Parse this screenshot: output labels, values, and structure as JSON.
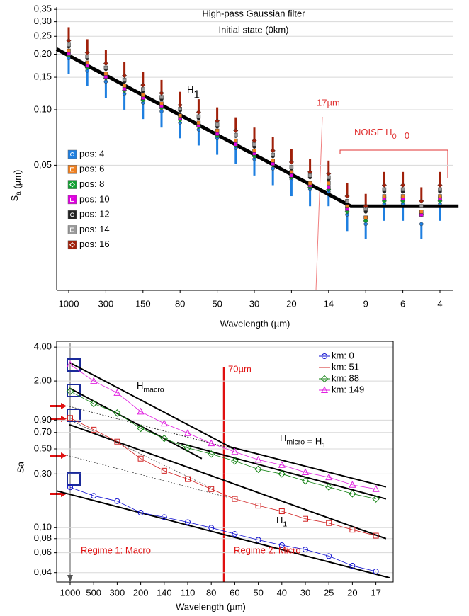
{
  "chart_data": [
    {
      "type": "scatter",
      "title": "High-pass Gaussian filter",
      "subtitle": "Initial state (0km)",
      "xlabel": "Wavelength (µm)",
      "ylabel": {
        "main": "S",
        "sub": "a",
        "rest": " (µm)"
      },
      "log_y": true,
      "grid": true,
      "ylim": [
        0.0105,
        0.36
      ],
      "yticks": [
        {
          "value": 0.35,
          "label": "0,35"
        },
        {
          "value": 0.3,
          "label": "0,30"
        },
        {
          "value": 0.25,
          "label": "0,25"
        },
        {
          "value": 0.2,
          "label": "0,20"
        },
        {
          "value": 0.15,
          "label": "0,15"
        },
        {
          "value": 0.1,
          "label": "0,10"
        },
        {
          "value": 0.05,
          "label": "0,05"
        }
      ],
      "categories": [
        "1000",
        null,
        "300",
        null,
        "150",
        null,
        "80",
        null,
        "50",
        null,
        "30",
        null,
        "20",
        null,
        "14",
        null,
        "9",
        null,
        "6",
        null,
        "4"
      ],
      "legend": "left",
      "series": [
        {
          "name": "pos: 4",
          "color": "#1e7fe0",
          "marker": "circle",
          "values": [
            0.19,
            0.163,
            0.142,
            0.122,
            0.109,
            0.098,
            0.085,
            0.078,
            0.07,
            0.062,
            0.054,
            0.048,
            0.042,
            0.037,
            0.036,
            0.027,
            0.024,
            0.031,
            0.031,
            0.024,
            0.031
          ],
          "errors": [
            0.034,
            0.029,
            0.026,
            0.022,
            0.02,
            0.018,
            0.015,
            0.014,
            0.013,
            0.011,
            0.01,
            0.009,
            0.008,
            0.007,
            0.006,
            0.005,
            0.004,
            0.006,
            0.006,
            0.004,
            0.006
          ]
        },
        {
          "name": "pos: 6",
          "color": "#f08020",
          "marker": "square",
          "values": [
            0.209,
            0.18,
            0.157,
            0.135,
            0.12,
            0.108,
            0.093,
            0.085,
            0.077,
            0.068,
            0.06,
            0.053,
            0.046,
            0.04,
            0.04,
            0.03,
            0.026,
            0.034,
            0.034,
            0.028,
            0.034
          ]
        },
        {
          "name": "pos: 8",
          "color": "#10a030",
          "marker": "diamond",
          "values": [
            0.197,
            0.169,
            0.148,
            0.127,
            0.113,
            0.102,
            0.088,
            0.081,
            0.072,
            0.064,
            0.056,
            0.05,
            0.043,
            0.038,
            0.037,
            0.028,
            0.025,
            0.032,
            0.032,
            0.027,
            0.032
          ]
        },
        {
          "name": "pos: 10",
          "color": "#e000e0",
          "marker": "square",
          "values": [
            0.201,
            0.173,
            0.151,
            0.13,
            0.116,
            0.105,
            0.09,
            0.082,
            0.074,
            0.065,
            0.058,
            0.051,
            0.044,
            0.039,
            0.038,
            0.029,
            0.026,
            0.033,
            0.033,
            0.027,
            0.033
          ]
        },
        {
          "name": "pos: 12",
          "color": "#222222",
          "marker": "circle",
          "values": [
            0.22,
            0.19,
            0.166,
            0.142,
            0.126,
            0.114,
            0.099,
            0.09,
            0.081,
            0.072,
            0.063,
            0.056,
            0.048,
            0.043,
            0.042,
            0.032,
            0.028,
            0.036,
            0.036,
            0.03,
            0.036
          ]
        },
        {
          "name": "pos: 14",
          "color": "#9a9a9a",
          "marker": "square",
          "values": [
            0.225,
            0.194,
            0.169,
            0.145,
            0.129,
            0.117,
            0.101,
            0.092,
            0.083,
            0.073,
            0.065,
            0.057,
            0.049,
            0.044,
            0.043,
            0.032,
            0.029,
            0.037,
            0.037,
            0.03,
            0.037
          ]
        },
        {
          "name": "pos: 16",
          "color": "#a0200a",
          "marker": "diamond",
          "values": [
            0.237,
            0.204,
            0.178,
            0.153,
            0.136,
            0.123,
            0.106,
            0.097,
            0.087,
            0.077,
            0.068,
            0.06,
            0.052,
            0.046,
            0.045,
            0.034,
            0.03,
            0.039,
            0.039,
            0.032,
            0.039
          ],
          "errors": [
            0.043,
            0.037,
            0.032,
            0.028,
            0.024,
            0.022,
            0.019,
            0.017,
            0.016,
            0.014,
            0.012,
            0.011,
            0.009,
            0.008,
            0.008,
            0.006,
            0.005,
            0.007,
            0.007,
            0.006,
            0.007
          ]
        }
      ],
      "fit_lines": [
        {
          "x": [
            -0.65,
            15.2,
            21
          ],
          "y": [
            0.213,
            0.03,
            0.03
          ]
        }
      ],
      "annotations": {
        "h1": {
          "main": "H",
          "sub": "1"
        },
        "cutoff": "17µm",
        "noise": {
          "main": "NOISE H",
          "sub": "0",
          "rest": " =0"
        }
      }
    },
    {
      "type": "line",
      "xlabel": "Wavelength (µm)",
      "ylabel": "Sa",
      "log_y": true,
      "grid": true,
      "ylim": [
        0.033,
        4.5
      ],
      "yticks": [
        {
          "value": 4,
          "label": "4,00"
        },
        {
          "value": 2,
          "label": "2,00"
        },
        {
          "value": 0.9,
          "label": "0,90"
        },
        {
          "value": 0.7,
          "label": "0,70"
        },
        {
          "value": 0.5,
          "label": "0,50"
        },
        {
          "value": 0.3,
          "label": "0,30"
        },
        {
          "value": 0.1,
          "label": "0,10"
        },
        {
          "value": 0.08,
          "label": "0,08"
        },
        {
          "value": 0.06,
          "label": "0,06"
        },
        {
          "value": 0.04,
          "label": "0,04"
        }
      ],
      "categories": [
        "1000",
        "500",
        "300",
        "200",
        "140",
        "110",
        "80",
        "60",
        "50",
        "40",
        "30",
        "25",
        "20",
        "17"
      ],
      "legend": "upper right",
      "series": [
        {
          "name": "km: 0",
          "color": "#1010d0",
          "marker": "circle",
          "values": [
            0.228,
            0.192,
            0.172,
            0.136,
            0.124,
            0.112,
            0.1,
            0.088,
            0.078,
            0.07,
            0.064,
            0.056,
            0.046,
            0.041
          ]
        },
        {
          "name": "km: 51",
          "color": "#d02020",
          "marker": "square",
          "values": [
            0.94,
            0.74,
            0.58,
            0.41,
            0.32,
            0.27,
            0.22,
            0.18,
            0.157,
            0.14,
            0.12,
            0.11,
            0.096,
            0.085
          ]
        },
        {
          "name": "km: 88",
          "color": "#108010",
          "marker": "diamond",
          "values": [
            1.62,
            1.26,
            1.04,
            0.76,
            0.62,
            0.51,
            0.45,
            0.39,
            0.33,
            0.3,
            0.26,
            0.23,
            0.2,
            0.18
          ]
        },
        {
          "name": "km: 149",
          "color": "#e020e0",
          "marker": "triangle",
          "values": [
            2.8,
            2.0,
            1.57,
            1.07,
            0.84,
            0.69,
            0.56,
            0.47,
            0.4,
            0.36,
            0.31,
            0.28,
            0.24,
            0.22
          ]
        }
      ],
      "fit_lines": [
        {
          "x": [
            -0.57,
            13.58
          ],
          "y": [
            0.212,
            0.036
          ]
        },
        {
          "x": [
            -0.03,
            13.43
          ],
          "y": [
            0.82,
            0.08
          ]
        },
        {
          "x": [
            -0.03,
            5.6
          ],
          "y": [
            1.73,
            0.41
          ]
        },
        {
          "x": [
            -0.03,
            6.96
          ],
          "y": [
            2.92,
            0.5
          ]
        },
        {
          "x": [
            6.66,
            13.43
          ],
          "y": [
            0.53,
            0.23
          ]
        },
        {
          "x": [
            4.55,
            13.43
          ],
          "y": [
            0.57,
            0.18
          ]
        }
      ],
      "annotations": {
        "cutoff": "70µm",
        "hmacro": {
          "main": "H",
          "sub": "macro"
        },
        "hmicro": {
          "main": "H",
          "sub": "micro",
          "rest": " = H",
          "sub2": "1"
        },
        "h1": {
          "main": "H",
          "sub": "1"
        },
        "regime1": "Regime 1: Macro",
        "regime2": "Regime 2: Micro"
      }
    }
  ]
}
